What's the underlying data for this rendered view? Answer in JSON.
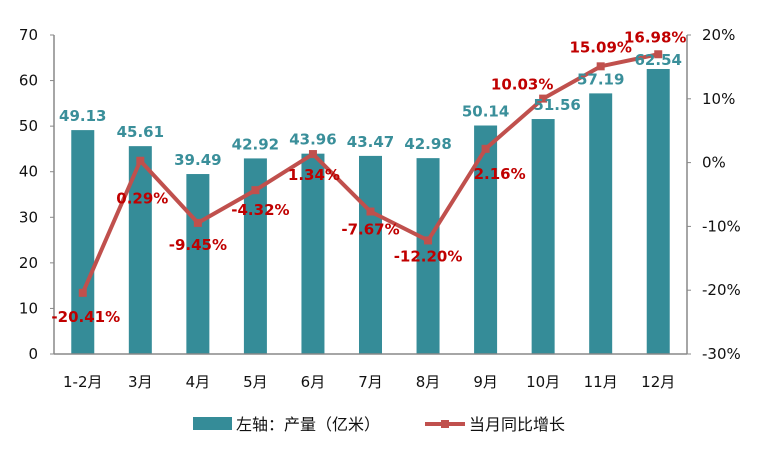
{
  "chart_data": {
    "type": "bar+line",
    "categories": [
      "1-2月",
      "3月",
      "4月",
      "5月",
      "6月",
      "7月",
      "8月",
      "9月",
      "10月",
      "11月",
      "12月"
    ],
    "series": [
      {
        "name": "左轴：产量（亿米）",
        "type": "bar",
        "axis": "left",
        "color": "#358c98",
        "values": [
          49.13,
          45.61,
          39.49,
          42.92,
          43.96,
          43.47,
          42.98,
          50.14,
          51.56,
          57.19,
          62.54
        ],
        "labels": [
          "49.13",
          "45.61",
          "39.49",
          "42.92",
          "43.96",
          "43.47",
          "42.98",
          "50.14",
          "51.56",
          "57.19",
          "62.54"
        ]
      },
      {
        "name": "当月同比增长",
        "type": "line",
        "axis": "right",
        "color": "#c0504d",
        "values": [
          -20.41,
          0.29,
          -9.45,
          -4.32,
          1.34,
          -7.67,
          -12.2,
          2.16,
          10.03,
          15.09,
          16.98
        ],
        "labels": [
          "-20.41%",
          "0.29%",
          "-9.45%",
          "-4.32%",
          "1.34%",
          "-7.67%",
          "-12.20%",
          "2.16%",
          "10.03%",
          "15.09%",
          "16.98%"
        ]
      }
    ],
    "left_axis": {
      "range": [
        0,
        70
      ],
      "ticks": [
        "0",
        "10",
        "20",
        "30",
        "40",
        "50",
        "60",
        "70"
      ]
    },
    "right_axis": {
      "range": [
        -30,
        20
      ],
      "ticks": [
        "-30%",
        "-20%",
        "-10%",
        "0%",
        "10%",
        "20%"
      ]
    },
    "legend": "bottom",
    "grid": false
  }
}
